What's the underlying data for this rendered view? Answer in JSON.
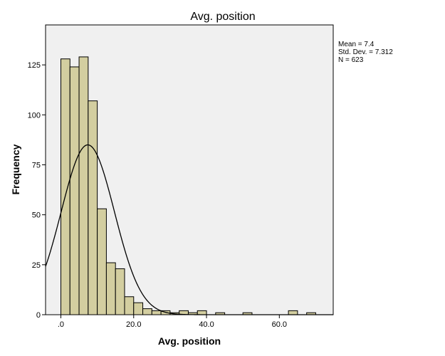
{
  "chart_data": {
    "type": "bar",
    "title": "Avg. position",
    "xlabel": "Avg. position",
    "ylabel": "Frequency",
    "xlim": [
      -4.2,
      74.8
    ],
    "ylim": [
      0,
      145
    ],
    "bin_width": 2.5,
    "bins": [
      {
        "start": 0.0,
        "end": 2.5,
        "count": 128
      },
      {
        "start": 2.5,
        "end": 5.0,
        "count": 124
      },
      {
        "start": 5.0,
        "end": 7.5,
        "count": 129
      },
      {
        "start": 7.5,
        "end": 10.0,
        "count": 107
      },
      {
        "start": 10.0,
        "end": 12.5,
        "count": 53
      },
      {
        "start": 12.5,
        "end": 15.0,
        "count": 26
      },
      {
        "start": 15.0,
        "end": 17.5,
        "count": 23
      },
      {
        "start": 17.5,
        "end": 20.0,
        "count": 9
      },
      {
        "start": 20.0,
        "end": 22.5,
        "count": 6
      },
      {
        "start": 22.5,
        "end": 25.0,
        "count": 3
      },
      {
        "start": 25.0,
        "end": 27.5,
        "count": 2
      },
      {
        "start": 27.5,
        "end": 30.0,
        "count": 2
      },
      {
        "start": 30.0,
        "end": 32.5,
        "count": 1
      },
      {
        "start": 32.5,
        "end": 35.0,
        "count": 2
      },
      {
        "start": 35.0,
        "end": 37.5,
        "count": 1
      },
      {
        "start": 37.5,
        "end": 40.0,
        "count": 2
      },
      {
        "start": 42.5,
        "end": 45.0,
        "count": 1
      },
      {
        "start": 50.0,
        "end": 52.5,
        "count": 1
      },
      {
        "start": 62.5,
        "end": 65.0,
        "count": 2
      },
      {
        "start": 67.5,
        "end": 70.0,
        "count": 1
      }
    ],
    "normal_curve": {
      "mean": 7.4,
      "std_dev": 7.312,
      "n": 623
    },
    "x_ticks": [
      {
        "value": 0,
        "label": ".0"
      },
      {
        "value": 20,
        "label": "20.0"
      },
      {
        "value": 40,
        "label": "40.0"
      },
      {
        "value": 60,
        "label": "60.0"
      }
    ],
    "y_ticks": [
      {
        "value": 0,
        "label": "0"
      },
      {
        "value": 25,
        "label": "25"
      },
      {
        "value": 50,
        "label": "50"
      },
      {
        "value": 75,
        "label": "75"
      },
      {
        "value": 100,
        "label": "100"
      },
      {
        "value": 125,
        "label": "125"
      }
    ],
    "stats_text": [
      "Mean = 7.4",
      "Std. Dev. = 7.312",
      "N = 623"
    ],
    "grid": false,
    "legend_position": "top-right",
    "colors": {
      "bar_fill": "#d3cea0",
      "bar_stroke": "#000000",
      "plot_background": "#f0f0f0",
      "curve": "#000000"
    }
  }
}
